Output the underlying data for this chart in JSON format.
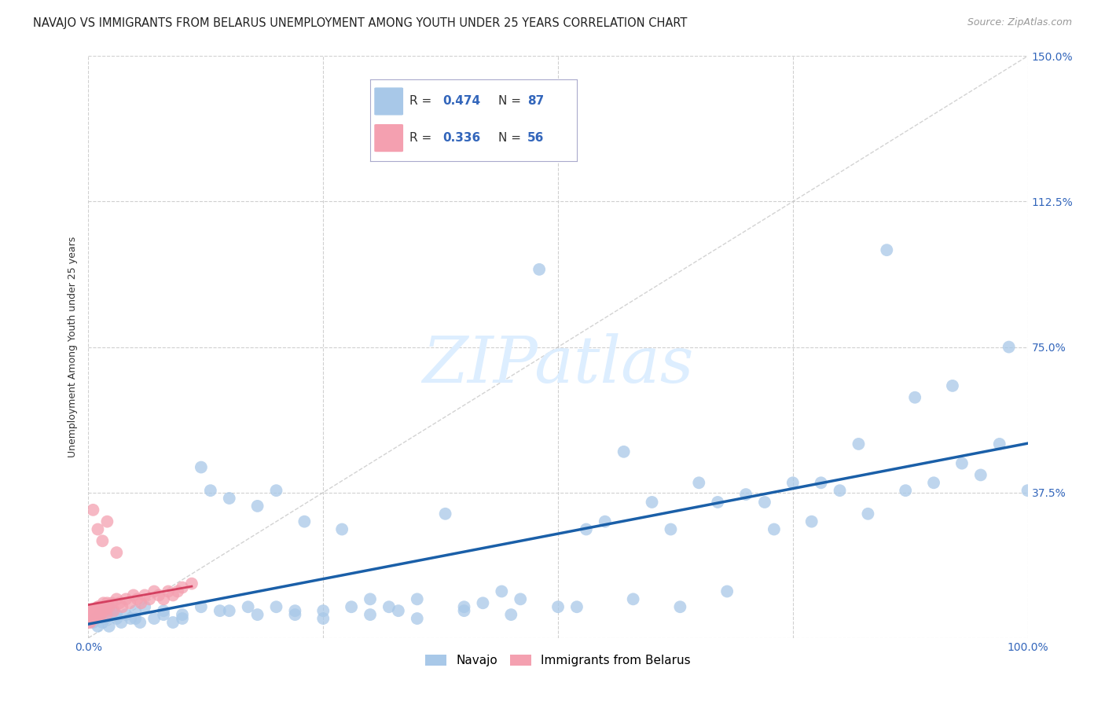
{
  "title": "NAVAJO VS IMMIGRANTS FROM BELARUS UNEMPLOYMENT AMONG YOUTH UNDER 25 YEARS CORRELATION CHART",
  "source": "Source: ZipAtlas.com",
  "ylabel": "Unemployment Among Youth under 25 years",
  "xlim": [
    0.0,
    1.0
  ],
  "ylim": [
    0.0,
    1.5
  ],
  "xticks": [
    0.0,
    0.25,
    0.5,
    0.75,
    1.0
  ],
  "xticklabels": [
    "0.0%",
    "",
    "",
    "",
    "100.0%"
  ],
  "ytick_positions": [
    0.0,
    0.375,
    0.75,
    1.125,
    1.5
  ],
  "right_yticklabels": [
    "",
    "37.5%",
    "75.0%",
    "112.5%",
    "150.0%"
  ],
  "left_yticklabels": [
    "",
    "",
    "",
    "",
    ""
  ],
  "navajo_R": 0.474,
  "navajo_N": 87,
  "belarus_R": 0.336,
  "belarus_N": 56,
  "navajo_color": "#a8c8e8",
  "navajo_line_color": "#1a5fa8",
  "belarus_color": "#f4a0b0",
  "belarus_line_color": "#d44060",
  "diagonal_color": "#c8c8c8",
  "watermark_color": "#ddeeff",
  "background_color": "#ffffff",
  "grid_color": "#d0d0d0",
  "title_fontsize": 10.5,
  "label_fontsize": 9,
  "tick_fontsize": 10,
  "source_fontsize": 9
}
